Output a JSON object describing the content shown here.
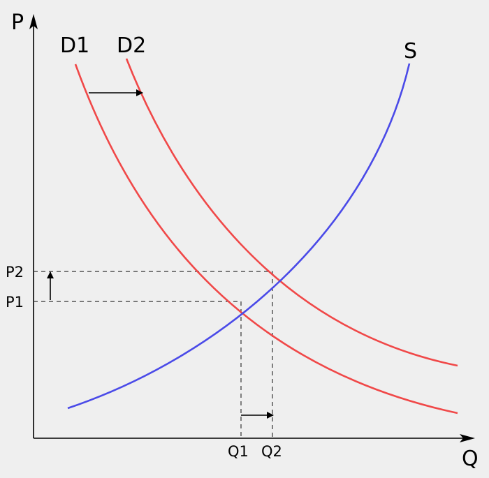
{
  "labels": {
    "p_axis": "P",
    "q_axis": "Q",
    "d1": "D1",
    "d2": "D2",
    "s": "S",
    "p1": "P1",
    "p2": "P2",
    "q1": "Q1",
    "q2": "Q2"
  },
  "colors": {
    "background": "#efefef",
    "demand": "#f04848",
    "supply": "#4a4ae8",
    "axis": "#000000"
  },
  "curves": {
    "d1": "demand-curve-before-shift",
    "d2": "demand-curve-after-shift",
    "s": "supply-curve"
  },
  "shifts": {
    "demand_shift_direction": "right",
    "price_change_direction": "up",
    "quantity_change_direction": "right"
  }
}
